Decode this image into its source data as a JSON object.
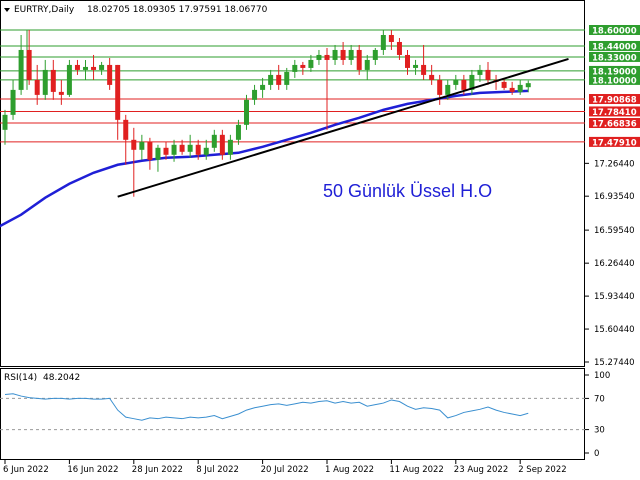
{
  "header": {
    "symbol": "EURTRY,Daily",
    "ohlc": "18.02705 18.09305 17.97591 18.06770"
  },
  "rsi_header": {
    "label": "RSI(14)",
    "value": "48.2042"
  },
  "annotation": {
    "text": "50 Günlük Üssel H.O",
    "color": "#1f1fd6"
  },
  "colors": {
    "bull": "#2e9e2e",
    "bear": "#e02020",
    "ema": "#1f1fd6",
    "trend": "#000000",
    "rsi": "#3a8fd0",
    "res_line": "#2e9e2e",
    "sup_line": "#e02020"
  },
  "chart_data": [
    {
      "type": "candlestick",
      "title": "EURTRY,Daily",
      "ylim": [
        15.24,
        18.64
      ],
      "y_ticks": [
        "17.26440",
        "16.93540",
        "16.59540",
        "16.26440",
        "15.93440",
        "15.60440",
        "15.27440"
      ],
      "x_labels": [
        "6 Jun 2022",
        "16 Jun 2022",
        "28 Jun 2022",
        "8 Jul 2022",
        "20 Jul 2022",
        "1 Aug 2022",
        "11 Aug 2022",
        "23 Aug 2022",
        "2 Sep 2022"
      ],
      "x_label_pos": [
        0,
        8,
        16,
        24,
        32,
        40,
        48,
        56,
        64
      ],
      "resistance_levels": [
        {
          "value": 18.6,
          "label": "18.60000"
        },
        {
          "value": 18.44,
          "label": "18.44000"
        },
        {
          "value": 18.33,
          "label": "18.33000"
        },
        {
          "value": 18.19,
          "label": "18.19000"
        },
        {
          "value": 18.1,
          "label": "18.10000"
        }
      ],
      "support_levels": [
        {
          "value": 17.90868,
          "label": "17.90868"
        },
        {
          "value": 17.7841,
          "label": "17.78410"
        },
        {
          "value": 17.66836,
          "label": "17.66836"
        },
        {
          "value": 17.4791,
          "label": "17.47910"
        }
      ],
      "candles": [
        {
          "o": 17.6,
          "h": 17.8,
          "l": 17.45,
          "c": 17.75
        },
        {
          "o": 17.75,
          "h": 18.1,
          "l": 17.7,
          "c": 18.0
        },
        {
          "o": 18.0,
          "h": 18.55,
          "l": 17.95,
          "c": 18.4
        },
        {
          "o": 18.4,
          "h": 18.6,
          "l": 18.05,
          "c": 18.1
        },
        {
          "o": 18.1,
          "h": 18.25,
          "l": 17.85,
          "c": 17.95
        },
        {
          "o": 17.95,
          "h": 18.3,
          "l": 17.9,
          "c": 18.2
        },
        {
          "o": 18.2,
          "h": 18.3,
          "l": 17.9,
          "c": 17.98
        },
        {
          "o": 17.98,
          "h": 18.1,
          "l": 17.85,
          "c": 17.95
        },
        {
          "o": 17.95,
          "h": 18.3,
          "l": 17.93,
          "c": 18.25
        },
        {
          "o": 18.25,
          "h": 18.3,
          "l": 18.15,
          "c": 18.2
        },
        {
          "o": 18.2,
          "h": 18.3,
          "l": 18.1,
          "c": 18.23
        },
        {
          "o": 18.23,
          "h": 18.35,
          "l": 18.1,
          "c": 18.2
        },
        {
          "o": 18.2,
          "h": 18.28,
          "l": 18.15,
          "c": 18.25
        },
        {
          "o": 18.25,
          "h": 18.32,
          "l": 18.0,
          "c": 18.05
        },
        {
          "o": 18.25,
          "h": 18.25,
          "l": 17.5,
          "c": 17.7
        },
        {
          "o": 17.7,
          "h": 17.75,
          "l": 17.25,
          "c": 17.5
        },
        {
          "o": 17.5,
          "h": 17.62,
          "l": 16.93,
          "c": 17.4
        },
        {
          "o": 17.4,
          "h": 17.55,
          "l": 17.3,
          "c": 17.48
        },
        {
          "o": 17.48,
          "h": 17.52,
          "l": 17.2,
          "c": 17.3
        },
        {
          "o": 17.3,
          "h": 17.45,
          "l": 17.18,
          "c": 17.42
        },
        {
          "o": 17.42,
          "h": 17.48,
          "l": 17.3,
          "c": 17.35
        },
        {
          "o": 17.35,
          "h": 17.5,
          "l": 17.28,
          "c": 17.45
        },
        {
          "o": 17.45,
          "h": 17.5,
          "l": 17.35,
          "c": 17.38
        },
        {
          "o": 17.38,
          "h": 17.55,
          "l": 17.32,
          "c": 17.45
        },
        {
          "o": 17.45,
          "h": 17.5,
          "l": 17.3,
          "c": 17.35
        },
        {
          "o": 17.35,
          "h": 17.5,
          "l": 17.3,
          "c": 17.42
        },
        {
          "o": 17.42,
          "h": 17.6,
          "l": 17.38,
          "c": 17.55
        },
        {
          "o": 17.55,
          "h": 17.6,
          "l": 17.3,
          "c": 17.35
        },
        {
          "o": 17.35,
          "h": 17.55,
          "l": 17.3,
          "c": 17.5
        },
        {
          "o": 17.5,
          "h": 17.7,
          "l": 17.45,
          "c": 17.65
        },
        {
          "o": 17.65,
          "h": 17.95,
          "l": 17.6,
          "c": 17.9
        },
        {
          "o": 17.9,
          "h": 18.05,
          "l": 17.85,
          "c": 18.0
        },
        {
          "o": 18.0,
          "h": 18.12,
          "l": 17.92,
          "c": 18.05
        },
        {
          "o": 18.05,
          "h": 18.2,
          "l": 18.0,
          "c": 18.15
        },
        {
          "o": 18.15,
          "h": 18.25,
          "l": 18.0,
          "c": 18.05
        },
        {
          "o": 18.05,
          "h": 18.22,
          "l": 18.0,
          "c": 18.18
        },
        {
          "o": 18.18,
          "h": 18.3,
          "l": 18.12,
          "c": 18.25
        },
        {
          "o": 18.25,
          "h": 18.28,
          "l": 18.15,
          "c": 18.22
        },
        {
          "o": 18.22,
          "h": 18.35,
          "l": 18.18,
          "c": 18.3
        },
        {
          "o": 18.3,
          "h": 18.4,
          "l": 18.25,
          "c": 18.35
        },
        {
          "o": 18.35,
          "h": 18.42,
          "l": 17.6,
          "c": 18.3
        },
        {
          "o": 18.3,
          "h": 18.45,
          "l": 18.25,
          "c": 18.4
        },
        {
          "o": 18.4,
          "h": 18.48,
          "l": 18.25,
          "c": 18.3
        },
        {
          "o": 18.3,
          "h": 18.45,
          "l": 18.25,
          "c": 18.4
        },
        {
          "o": 18.4,
          "h": 18.45,
          "l": 18.15,
          "c": 18.2
        },
        {
          "o": 18.2,
          "h": 18.35,
          "l": 18.1,
          "c": 18.3
        },
        {
          "o": 18.3,
          "h": 18.42,
          "l": 18.25,
          "c": 18.4
        },
        {
          "o": 18.4,
          "h": 18.6,
          "l": 18.35,
          "c": 18.55
        },
        {
          "o": 18.55,
          "h": 18.6,
          "l": 18.4,
          "c": 18.48
        },
        {
          "o": 18.48,
          "h": 18.52,
          "l": 18.3,
          "c": 18.35
        },
        {
          "o": 18.35,
          "h": 18.4,
          "l": 18.15,
          "c": 18.22
        },
        {
          "o": 18.22,
          "h": 18.3,
          "l": 18.15,
          "c": 18.25
        },
        {
          "o": 18.25,
          "h": 18.45,
          "l": 18.1,
          "c": 18.15
        },
        {
          "o": 18.15,
          "h": 18.25,
          "l": 18.05,
          "c": 18.1
        },
        {
          "o": 18.1,
          "h": 18.15,
          "l": 17.85,
          "c": 17.95
        },
        {
          "o": 17.95,
          "h": 18.1,
          "l": 17.9,
          "c": 18.05
        },
        {
          "o": 18.05,
          "h": 18.15,
          "l": 18.0,
          "c": 18.1
        },
        {
          "o": 18.1,
          "h": 18.15,
          "l": 17.95,
          "c": 18.0
        },
        {
          "o": 18.0,
          "h": 18.2,
          "l": 17.95,
          "c": 18.15
        },
        {
          "o": 18.15,
          "h": 18.25,
          "l": 18.08,
          "c": 18.2
        },
        {
          "o": 18.2,
          "h": 18.28,
          "l": 18.05,
          "c": 18.1
        },
        {
          "o": 18.1,
          "h": 18.15,
          "l": 18.0,
          "c": 18.08
        },
        {
          "o": 18.08,
          "h": 18.12,
          "l": 18.0,
          "c": 18.02
        },
        {
          "o": 18.02,
          "h": 18.08,
          "l": 17.95,
          "c": 17.98
        },
        {
          "o": 17.98,
          "h": 18.1,
          "l": 17.95,
          "c": 18.05
        },
        {
          "o": 18.02705,
          "h": 18.09305,
          "l": 17.97591,
          "c": 18.0677
        }
      ],
      "ema50": [
        [
          -1,
          16.62
        ],
        [
          2,
          16.75
        ],
        [
          5,
          16.92
        ],
        [
          8,
          17.06
        ],
        [
          11,
          17.17
        ],
        [
          14,
          17.25
        ],
        [
          17,
          17.29
        ],
        [
          20,
          17.32
        ],
        [
          23,
          17.33
        ],
        [
          26,
          17.35
        ],
        [
          29,
          17.37
        ],
        [
          32,
          17.43
        ],
        [
          35,
          17.5
        ],
        [
          38,
          17.57
        ],
        [
          41,
          17.65
        ],
        [
          44,
          17.72
        ],
        [
          47,
          17.8
        ],
        [
          50,
          17.86
        ],
        [
          53,
          17.9
        ],
        [
          56,
          17.94
        ],
        [
          59,
          17.97
        ],
        [
          62,
          17.98
        ],
        [
          65,
          17.99
        ]
      ],
      "trendline": [
        [
          14,
          16.93
        ],
        [
          70,
          18.31
        ]
      ]
    },
    {
      "type": "line",
      "title": "RSI(14) 48.2042",
      "ylim": [
        0,
        100
      ],
      "y_ticks": [
        "100",
        "70",
        "30",
        "0"
      ],
      "levels": [
        70,
        30
      ],
      "values": [
        75,
        76,
        73,
        71,
        70,
        69,
        70,
        70,
        69,
        70,
        70,
        69,
        69,
        70,
        55,
        46,
        44,
        42,
        45,
        44,
        46,
        45,
        44,
        46,
        45,
        46,
        48,
        44,
        47,
        50,
        55,
        58,
        60,
        62,
        63,
        61,
        63,
        65,
        64,
        66,
        67,
        64,
        66,
        64,
        65,
        60,
        62,
        64,
        68,
        66,
        60,
        56,
        58,
        57,
        55,
        45,
        48,
        52,
        54,
        56,
        59,
        55,
        52,
        50,
        48,
        51
      ]
    }
  ]
}
